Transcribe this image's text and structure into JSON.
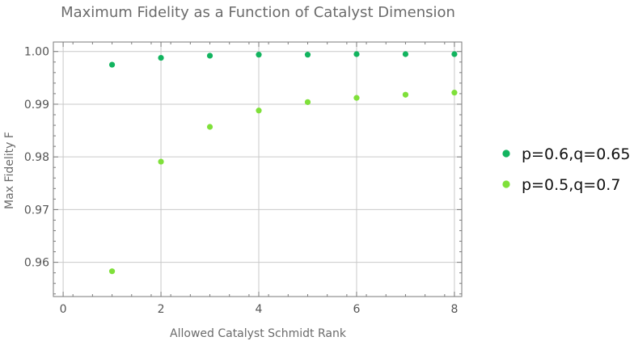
{
  "chart_data": {
    "type": "scatter",
    "title": "Maximum Fidelity as a Function of Catalyst Dimension",
    "xlabel": "Allowed Catalyst Schmidt Rank",
    "ylabel": "Max Fidelity F",
    "xlim": [
      -0.2,
      8.15
    ],
    "ylim": [
      0.9535,
      1.0018
    ],
    "x_ticks": [
      0,
      2,
      4,
      6,
      8
    ],
    "y_ticks": [
      0.96,
      0.97,
      0.98,
      0.99,
      1.0
    ],
    "x_tick_labels": [
      "0",
      "2",
      "4",
      "6",
      "8"
    ],
    "y_tick_labels": [
      "0.96",
      "0.97",
      "0.98",
      "0.99",
      "1.00"
    ],
    "grid": true,
    "legend_position": "right",
    "series": [
      {
        "name": "p=0.6,q=0.65",
        "color": "#12b45f",
        "x": [
          1,
          2,
          3,
          4,
          5,
          6,
          7,
          8
        ],
        "y": [
          0.9975,
          0.9988,
          0.9992,
          0.9994,
          0.9994,
          0.9995,
          0.9995,
          0.9995
        ]
      },
      {
        "name": "p=0.5,q=0.7",
        "color": "#7fe03a",
        "x": [
          1,
          2,
          3,
          4,
          5,
          6,
          7,
          8
        ],
        "y": [
          0.9583,
          0.9791,
          0.9857,
          0.9888,
          0.9904,
          0.9912,
          0.9918,
          0.9922
        ]
      }
    ]
  }
}
